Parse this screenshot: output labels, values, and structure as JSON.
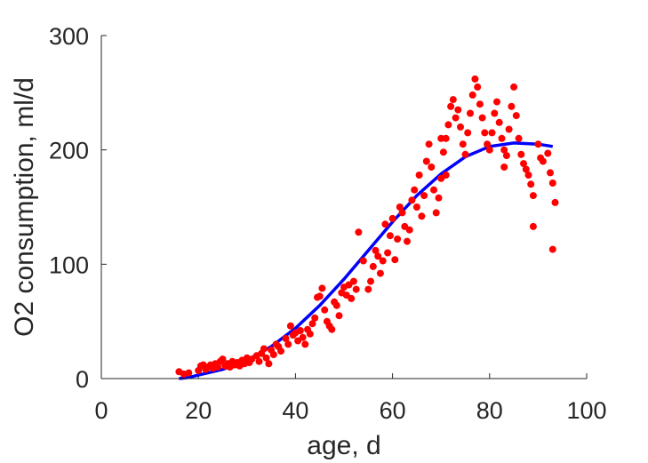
{
  "chart_data": {
    "type": "scatter",
    "xlabel": "age, d",
    "ylabel": "O2 consumption, ml/d",
    "xlim": [
      0,
      100
    ],
    "ylim": [
      0,
      300
    ],
    "xticks": [
      "0",
      "20",
      "40",
      "60",
      "80",
      "100"
    ],
    "yticks": [
      "0",
      "100",
      "200",
      "300"
    ],
    "grid": false,
    "colors": {
      "points": "#ff0000",
      "fit": "#0000ff",
      "axis": "#262626"
    },
    "series": [
      {
        "kind": "scatter",
        "points": [
          [
            16,
            6
          ],
          [
            17,
            4
          ],
          [
            18,
            5
          ],
          [
            20,
            7
          ],
          [
            20.5,
            11
          ],
          [
            21,
            12
          ],
          [
            21.5,
            8
          ],
          [
            22,
            10
          ],
          [
            22.5,
            12
          ],
          [
            23,
            9
          ],
          [
            23.5,
            13
          ],
          [
            24,
            10
          ],
          [
            24.5,
            15
          ],
          [
            25,
            17
          ],
          [
            25.5,
            11
          ],
          [
            26,
            13
          ],
          [
            26.5,
            10
          ],
          [
            27,
            15
          ],
          [
            27.5,
            12
          ],
          [
            28,
            14
          ],
          [
            28.5,
            11
          ],
          [
            29,
            16
          ],
          [
            29.5,
            13
          ],
          [
            30,
            18
          ],
          [
            30.5,
            14
          ],
          [
            31,
            17
          ],
          [
            32,
            20
          ],
          [
            32.5,
            15
          ],
          [
            33,
            22
          ],
          [
            33.5,
            26
          ],
          [
            34,
            18
          ],
          [
            34.5,
            13
          ],
          [
            35,
            25
          ],
          [
            35.5,
            21
          ],
          [
            36,
            30
          ],
          [
            36.5,
            28
          ],
          [
            37,
            24
          ],
          [
            38,
            35
          ],
          [
            38.5,
            30
          ],
          [
            39,
            46
          ],
          [
            39.5,
            38
          ],
          [
            40,
            40
          ],
          [
            40.5,
            33
          ],
          [
            41,
            42
          ],
          [
            41.5,
            36
          ],
          [
            42,
            30
          ],
          [
            42.5,
            43
          ],
          [
            43,
            39
          ],
          [
            43.5,
            48
          ],
          [
            44,
            53
          ],
          [
            44.5,
            71
          ],
          [
            45,
            72
          ],
          [
            45.5,
            79
          ],
          [
            46,
            60
          ],
          [
            46.5,
            50
          ],
          [
            47,
            46
          ],
          [
            47.5,
            43
          ],
          [
            48,
            67
          ],
          [
            48.5,
            64
          ],
          [
            49,
            55
          ],
          [
            49.5,
            75
          ],
          [
            50,
            80
          ],
          [
            50.5,
            73
          ],
          [
            51,
            82
          ],
          [
            51.5,
            70
          ],
          [
            52,
            85
          ],
          [
            52.5,
            78
          ],
          [
            53,
            128
          ],
          [
            54,
            103
          ],
          [
            55,
            78
          ],
          [
            55.5,
            85
          ],
          [
            56,
            98
          ],
          [
            56.5,
            112
          ],
          [
            57,
            107
          ],
          [
            57.5,
            92
          ],
          [
            58,
            103
          ],
          [
            58.5,
            135
          ],
          [
            59,
            110
          ],
          [
            59.5,
            125
          ],
          [
            60,
            140
          ],
          [
            60.5,
            104
          ],
          [
            61,
            122
          ],
          [
            61.5,
            150
          ],
          [
            62,
            145
          ],
          [
            62.5,
            133
          ],
          [
            63,
            120
          ],
          [
            63.5,
            130
          ],
          [
            64,
            156
          ],
          [
            64.5,
            165
          ],
          [
            65,
            150
          ],
          [
            65.5,
            178
          ],
          [
            66,
            142
          ],
          [
            66.5,
            160
          ],
          [
            67,
            190
          ],
          [
            67.5,
            205
          ],
          [
            68,
            185
          ],
          [
            68.5,
            165
          ],
          [
            69,
            145
          ],
          [
            69.5,
            158
          ],
          [
            70,
            175
          ],
          [
            70.5,
            198
          ],
          [
            71,
            210
          ],
          [
            71.5,
            222
          ],
          [
            72,
            238
          ],
          [
            72.5,
            244
          ],
          [
            73,
            228
          ],
          [
            73.5,
            235
          ],
          [
            74,
            220
          ],
          [
            74.5,
            205
          ],
          [
            75,
            196
          ],
          [
            75.5,
            215
          ],
          [
            76,
            232
          ],
          [
            76.5,
            248
          ],
          [
            77,
            262
          ],
          [
            77.5,
            255
          ],
          [
            78,
            240
          ],
          [
            78.5,
            228
          ],
          [
            79,
            215
          ],
          [
            79.5,
            205
          ],
          [
            80,
            200
          ],
          [
            80.5,
            215
          ],
          [
            81,
            232
          ],
          [
            81.5,
            242
          ],
          [
            82,
            224
          ],
          [
            82.5,
            210
          ],
          [
            83,
            200
          ],
          [
            83.5,
            195
          ],
          [
            84,
            218
          ],
          [
            84.5,
            238
          ],
          [
            85,
            255
          ],
          [
            85.5,
            230
          ],
          [
            86,
            210
          ],
          [
            86.5,
            196
          ],
          [
            87,
            188
          ],
          [
            87.5,
            183
          ],
          [
            88,
            178
          ],
          [
            88.5,
            170
          ],
          [
            89,
            160
          ],
          [
            90,
            205
          ],
          [
            90.5,
            193
          ],
          [
            91,
            190
          ],
          [
            92,
            197
          ],
          [
            92.5,
            180
          ],
          [
            93,
            171
          ],
          [
            93.5,
            154
          ],
          [
            93,
            113
          ],
          [
            89,
            133
          ],
          [
            83,
            185
          ],
          [
            70,
            210
          ],
          [
            71,
            178
          ]
        ]
      },
      {
        "kind": "line",
        "points": [
          [
            16,
            0
          ],
          [
            18,
            1
          ],
          [
            20,
            3
          ],
          [
            25,
            8
          ],
          [
            30,
            16
          ],
          [
            35,
            28
          ],
          [
            40,
            44
          ],
          [
            45,
            64
          ],
          [
            50,
            87
          ],
          [
            55,
            112
          ],
          [
            60,
            137
          ],
          [
            65,
            160
          ],
          [
            70,
            179
          ],
          [
            75,
            194
          ],
          [
            80,
            203
          ],
          [
            85,
            206
          ],
          [
            90,
            205
          ],
          [
            93,
            203
          ]
        ]
      }
    ]
  }
}
